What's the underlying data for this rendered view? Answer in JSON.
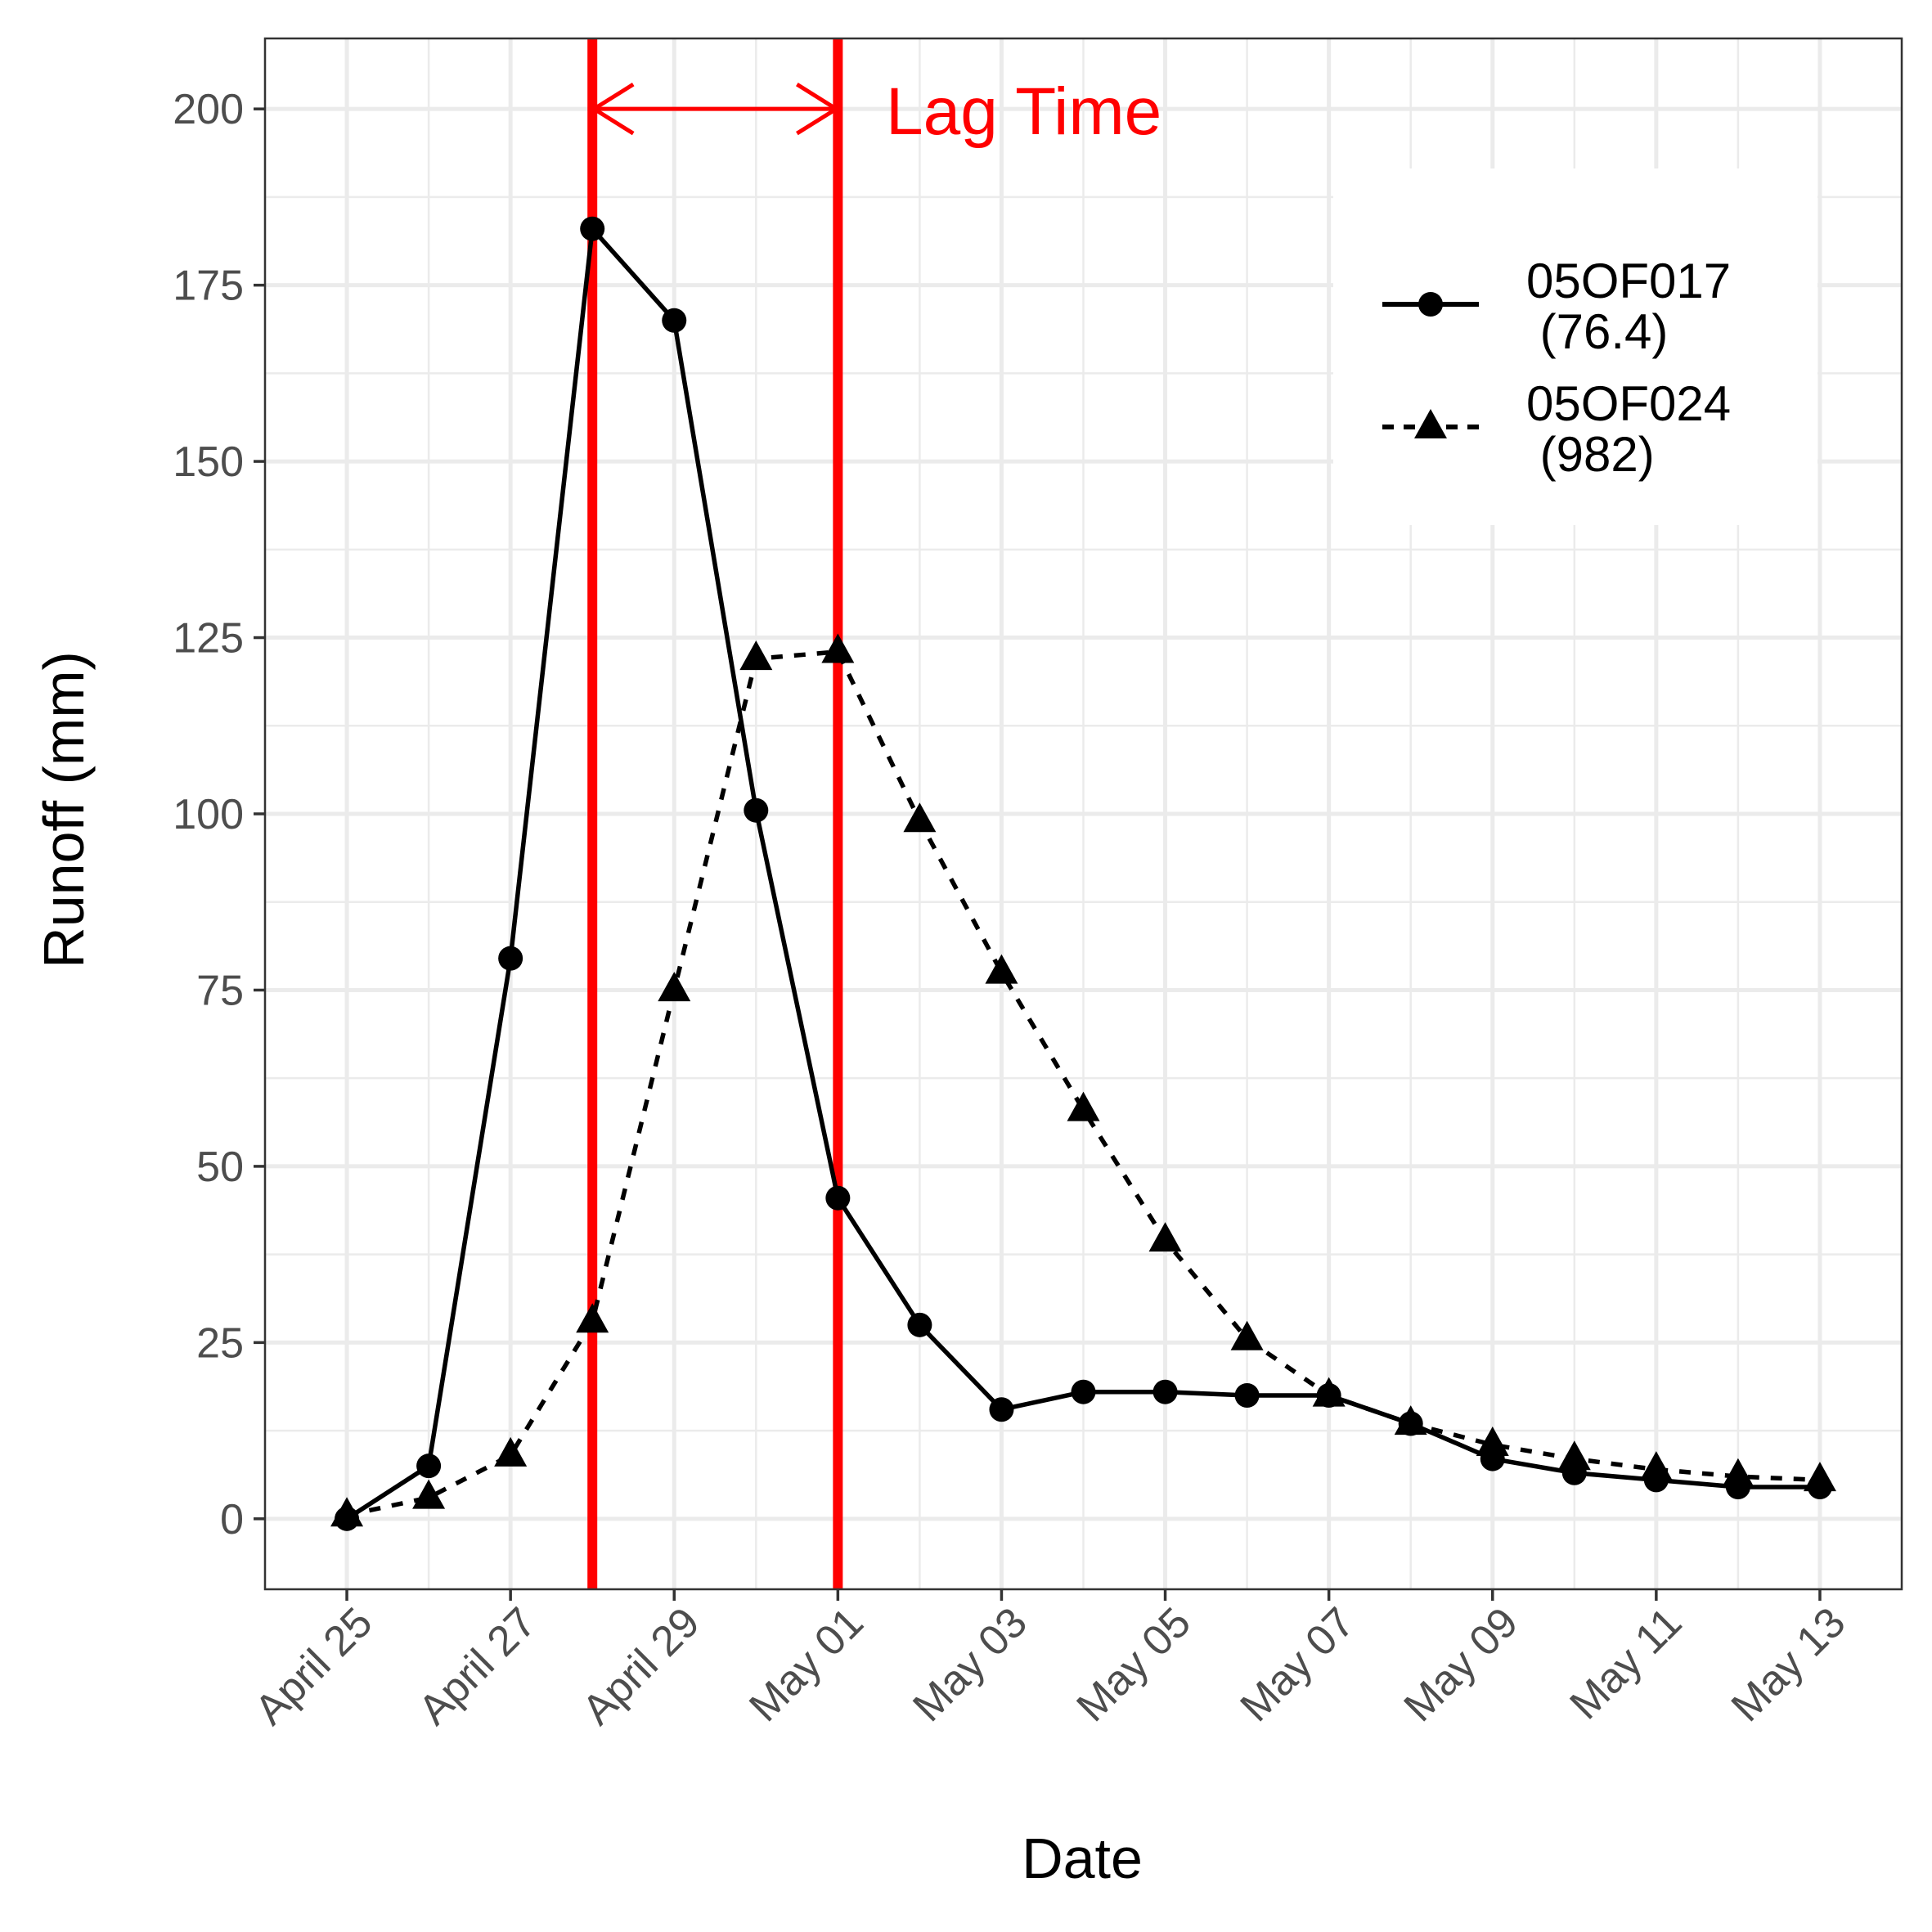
{
  "chart_data": {
    "type": "line",
    "title": "",
    "xlabel": "Date",
    "ylabel": "Runoff (mm)",
    "x": [
      "2023-04-25",
      "2023-04-26",
      "2023-04-27",
      "2023-04-28",
      "2023-04-29",
      "2023-04-30",
      "2023-05-01",
      "2023-05-02",
      "2023-05-03",
      "2023-05-04",
      "2023-05-05",
      "2023-05-06",
      "2023-05-07",
      "2023-05-08",
      "2023-05-09",
      "2023-05-10",
      "2023-05-11",
      "2023-05-12",
      "2023-05-13"
    ],
    "xticks": [
      "April 25",
      "April 27",
      "April 29",
      "May 01",
      "May 03",
      "May 05",
      "May 07",
      "May 09",
      "May 11",
      "May 13"
    ],
    "xlim": [
      "2023-04-24",
      "2023-05-14"
    ],
    "ylim": [
      -10,
      210
    ],
    "yticks": [
      0,
      25,
      50,
      75,
      100,
      125,
      150,
      175,
      200
    ],
    "ytick_labels": [
      "0",
      "25",
      "50",
      "75",
      "100",
      "125",
      "150",
      "175",
      "200"
    ],
    "grid": true,
    "legend_position": "top-right",
    "series": [
      {
        "name": "05OF017\n (76.4)",
        "name_lines": [
          "05OF017",
          " (76.4)"
        ],
        "line_style": "solid",
        "marker": "circle",
        "color": "#000000",
        "values": [
          0,
          7.5,
          79.5,
          183,
          170,
          100.5,
          45.5,
          27.5,
          15.5,
          18,
          18,
          17.5,
          17.5,
          13.5,
          8.5,
          6.5,
          5.5,
          4.5,
          4.5
        ]
      },
      {
        "name": "05OF024\n (982)",
        "name_lines": [
          "05OF024",
          " (982)"
        ],
        "line_style": "dotted",
        "marker": "triangle",
        "color": "#000000",
        "values": [
          0.5,
          3,
          9,
          28,
          75,
          122,
          123,
          99,
          77.5,
          58,
          39.5,
          25.5,
          17.5,
          13.5,
          10.5,
          8.5,
          7,
          6,
          5.5
        ]
      }
    ],
    "annotations": {
      "lag_text": "Lag Time",
      "lines_at": [
        "2023-04-28",
        "2023-05-01"
      ],
      "arrow_y": 200,
      "color": "#ff0000"
    }
  }
}
